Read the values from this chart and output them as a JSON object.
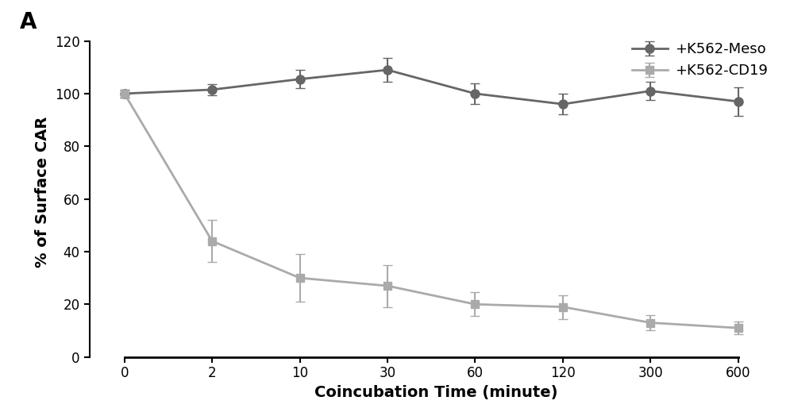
{
  "title": "",
  "panel_label": "A",
  "xlabel": "Coincubation Time (minute)",
  "ylabel": "% of Surface CAR",
  "xlim": [
    -0.4,
    7.5
  ],
  "ylim": [
    0,
    125
  ],
  "yticks": [
    0,
    20,
    40,
    60,
    80,
    100,
    120
  ],
  "xtick_indices": [
    0,
    1,
    2,
    3,
    4,
    5,
    6,
    7
  ],
  "xtick_labels": [
    "0",
    "2",
    "10",
    "30",
    "60",
    "120",
    "300",
    "600"
  ],
  "series": [
    {
      "label": "+K562-Meso",
      "x_indices": [
        0,
        1,
        2,
        3,
        4,
        5,
        6,
        7
      ],
      "y": [
        100,
        101.5,
        105.5,
        109,
        100,
        96,
        101,
        97
      ],
      "yerr": [
        1.5,
        2.0,
        3.5,
        4.5,
        4.0,
        4.0,
        3.5,
        5.5
      ],
      "color": "#666666",
      "marker": "o",
      "markersize": 8,
      "linewidth": 2.0,
      "linestyle": "-"
    },
    {
      "label": "+K562-CD19",
      "x_indices": [
        0,
        1,
        2,
        3,
        4,
        5,
        6,
        7
      ],
      "y": [
        100,
        44,
        30,
        27,
        20,
        19,
        13,
        11
      ],
      "yerr": [
        1.5,
        8.0,
        9.0,
        8.0,
        4.5,
        4.5,
        3.0,
        2.5
      ],
      "color": "#aaaaaa",
      "marker": "s",
      "markersize": 7,
      "linewidth": 2.0,
      "linestyle": "-"
    }
  ],
  "legend_loc": "upper right",
  "background_color": "#ffffff",
  "capsize": 4,
  "elinewidth": 1.5
}
